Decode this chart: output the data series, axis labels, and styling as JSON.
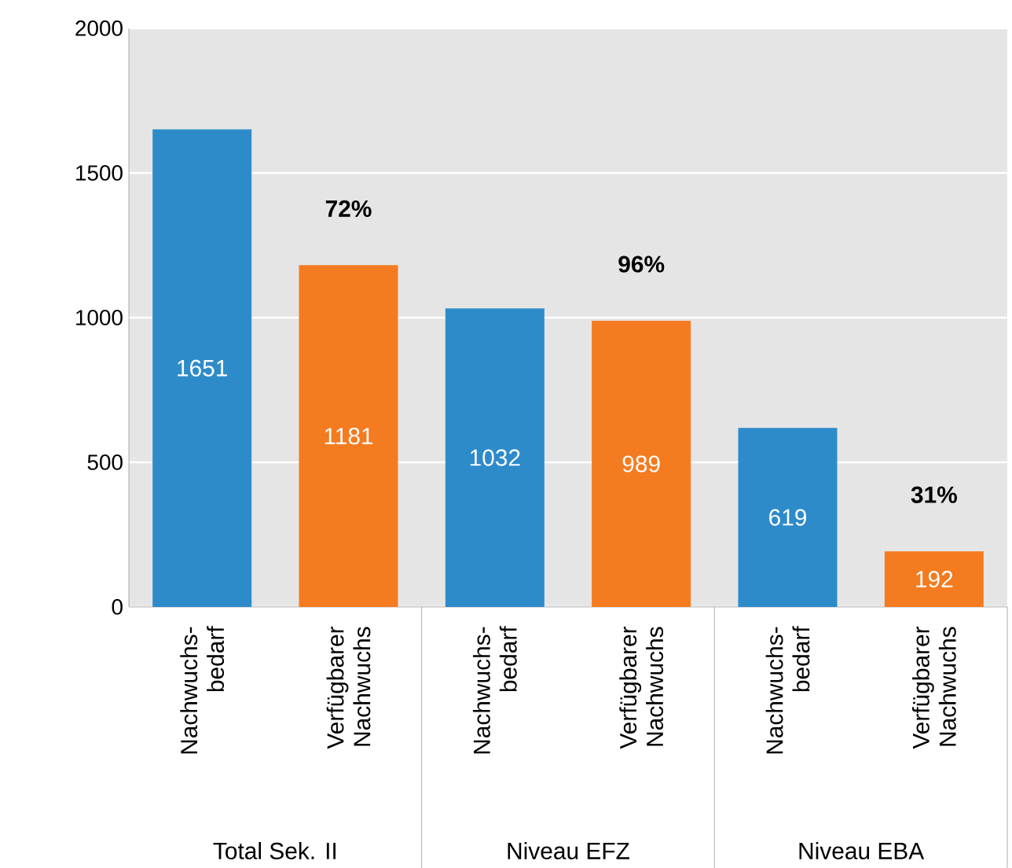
{
  "chart_data": {
    "type": "bar",
    "categories": [
      "Nachwuchs- bedarf",
      "Verfügbarer Nachwuchs",
      "Nachwuchs- bedarf",
      "Verfügbarer Nachwuchs",
      "Nachwuchs- bedarf",
      "Verfügbarer Nachwuchs"
    ],
    "values": [
      1651,
      1181,
      1032,
      989,
      619,
      192
    ],
    "colors": [
      "#2e8bca",
      "#f47b20",
      "#2e8bca",
      "#f47b20",
      "#2e8bca",
      "#f47b20"
    ],
    "ylim": [
      0,
      2000
    ],
    "yticks": [
      0,
      500,
      1000,
      1500,
      2000
    ],
    "grid": "y",
    "data_labels": true,
    "annotations": [
      "Total Sek. II",
      "Niveau EFZ",
      "Niveau EBA",
      "72%",
      "96%",
      "31%"
    ]
  }
}
